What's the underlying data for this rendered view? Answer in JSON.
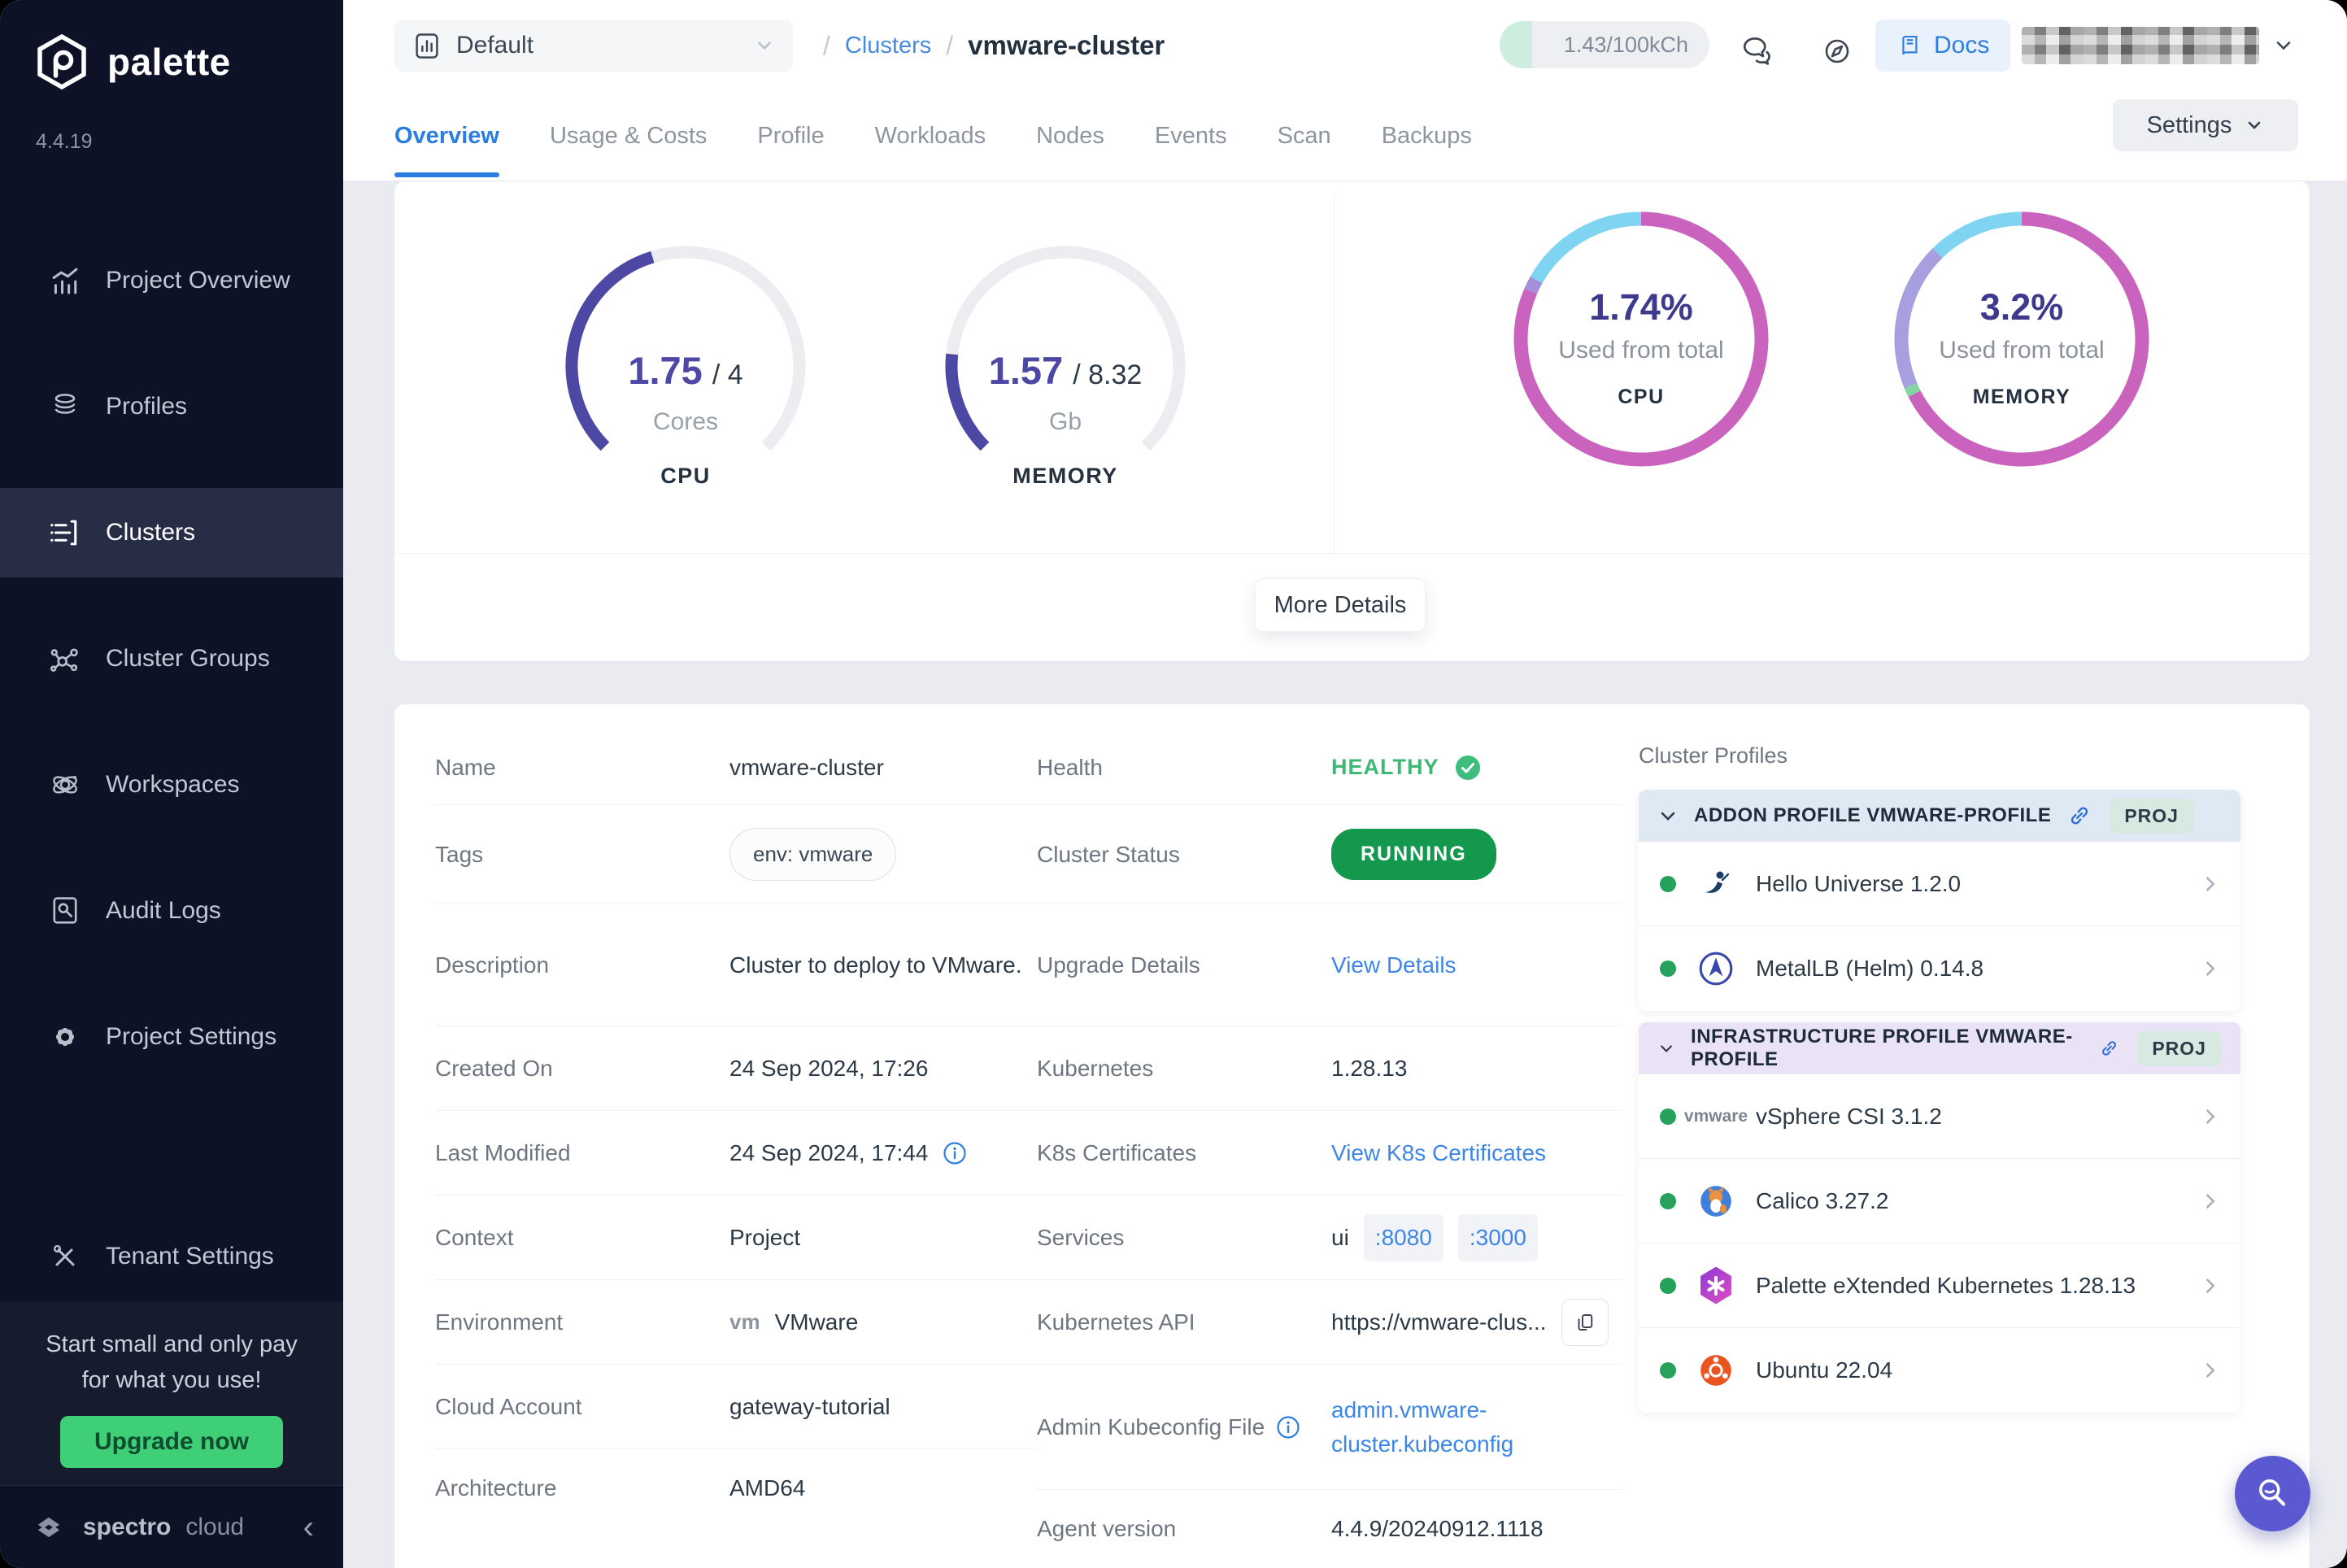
{
  "app": {
    "logo_text": "palette",
    "version": "4.4.19"
  },
  "sidebar": {
    "items": [
      {
        "label": "Project Overview"
      },
      {
        "label": "Profiles"
      },
      {
        "label": "Clusters"
      },
      {
        "label": "Cluster Groups"
      },
      {
        "label": "Workspaces"
      },
      {
        "label": "Audit Logs"
      },
      {
        "label": "Project Settings"
      }
    ],
    "active_item": "Clusters",
    "tenant_settings_label": "Tenant Settings",
    "promo": {
      "line1": "Start small and only pay",
      "line2": "for what you use!",
      "button": "Upgrade now"
    },
    "footer": {
      "brand_bold": "spectro",
      "brand_light": "cloud"
    }
  },
  "topbar": {
    "project_selector": {
      "value": "Default"
    },
    "breadcrumb": {
      "separator": "/",
      "section": "Clusters",
      "current": "vmware-cluster"
    },
    "usage_badge": "1.43/100kCh",
    "docs_label": "Docs"
  },
  "tabs": {
    "items": [
      {
        "label": "Overview"
      },
      {
        "label": "Usage & Costs"
      },
      {
        "label": "Profile"
      },
      {
        "label": "Workloads"
      },
      {
        "label": "Nodes"
      },
      {
        "label": "Events"
      },
      {
        "label": "Scan"
      },
      {
        "label": "Backups"
      }
    ],
    "active": "Overview",
    "settings_label": "Settings"
  },
  "overview": {
    "colors": {
      "gauge_fill": "#4c48a4",
      "gauge_track": "#ececf1"
    },
    "gauges": [
      {
        "value": "1.75",
        "of": "/ 4",
        "unit": "Cores",
        "label": "CPU",
        "fraction": 0.4375
      },
      {
        "value": "1.57",
        "of": "/ 8.32",
        "unit": "Gb",
        "label": "MEMORY",
        "fraction": 0.1887
      }
    ],
    "donuts": [
      {
        "value": "1.74%",
        "caption": "Used from total",
        "label": "CPU",
        "segments": [
          {
            "color": "#c963bd",
            "frac": 0.815
          },
          {
            "color": "#a48fd8",
            "frac": 0.017
          },
          {
            "color": "#7fd4f2",
            "frac": 0.168
          }
        ]
      },
      {
        "value": "3.2%",
        "caption": "Used from total",
        "label": "MEMORY",
        "segments": [
          {
            "color": "#c963bd",
            "frac": 0.675
          },
          {
            "color": "#84d5a5",
            "frac": 0.012
          },
          {
            "color": "#a79fe0",
            "frac": 0.19
          },
          {
            "color": "#7fd4f2",
            "frac": 0.123
          }
        ]
      }
    ],
    "more_details_label": "More Details"
  },
  "details": {
    "left": [
      {
        "label": "Name",
        "value": "vmware-cluster"
      },
      {
        "label": "Tags",
        "value": "env: vmware"
      },
      {
        "label": "Description",
        "value": "Cluster to deploy to VMware."
      },
      {
        "label": "Created On",
        "value": "24 Sep 2024, 17:26"
      },
      {
        "label": "Last Modified",
        "value": "24 Sep 2024, 17:44"
      },
      {
        "label": "Context",
        "value": "Project"
      },
      {
        "label": "Environment",
        "value": "VMware",
        "icon_label": "vm"
      },
      {
        "label": "Cloud Account",
        "value": "gateway-tutorial"
      },
      {
        "label": "Architecture",
        "value": "AMD64"
      }
    ],
    "middle": [
      {
        "label": "Health",
        "value": "HEALTHY"
      },
      {
        "label": "Cluster Status",
        "value": "RUNNING"
      },
      {
        "label": "Upgrade Details",
        "value": "View Details"
      },
      {
        "label": "Kubernetes",
        "value": "1.28.13"
      },
      {
        "label": "K8s Certificates",
        "value": "View K8s Certificates"
      },
      {
        "label": "Services",
        "value": "ui",
        "ports": [
          ":8080",
          ":3000"
        ]
      },
      {
        "label": "Kubernetes API",
        "value": "https://vmware-clus..."
      },
      {
        "label": "Admin Kubeconfig File",
        "value": "admin.vmware-cluster.kubeconfig"
      },
      {
        "label": "Agent version",
        "value": "4.4.9/20240912.1118"
      }
    ]
  },
  "cluster_profiles": {
    "title": "Cluster Profiles",
    "sections": [
      {
        "header": "ADDON PROFILE VMWARE-PROFILE",
        "badge": "PROJ",
        "theme": "blue",
        "items": [
          {
            "name": "Hello Universe 1.2.0",
            "icon": "hello-universe"
          },
          {
            "name": "MetalLB (Helm) 0.14.8",
            "icon": "metallb"
          }
        ]
      },
      {
        "header": "INFRASTRUCTURE PROFILE VMWARE-PROFILE",
        "badge": "PROJ",
        "theme": "purple",
        "items": [
          {
            "name": "vSphere CSI 3.1.2",
            "icon": "vmware",
            "icon_label": "vmware"
          },
          {
            "name": "Calico 3.27.2",
            "icon": "calico"
          },
          {
            "name": "Palette eXtended Kubernetes 1.28.13",
            "icon": "pxk"
          },
          {
            "name": "Ubuntu 22.04",
            "icon": "ubuntu"
          }
        ]
      }
    ]
  },
  "chart_data": [
    {
      "type": "gauge",
      "title": "CPU",
      "value": 1.75,
      "max": 4,
      "unit": "Cores"
    },
    {
      "type": "gauge",
      "title": "MEMORY",
      "value": 1.57,
      "max": 8.32,
      "unit": "Gb"
    },
    {
      "type": "donut",
      "title": "CPU",
      "center_value": "1.74%",
      "center_caption": "Used from total"
    },
    {
      "type": "donut",
      "title": "MEMORY",
      "center_value": "3.2%",
      "center_caption": "Used from total"
    }
  ]
}
